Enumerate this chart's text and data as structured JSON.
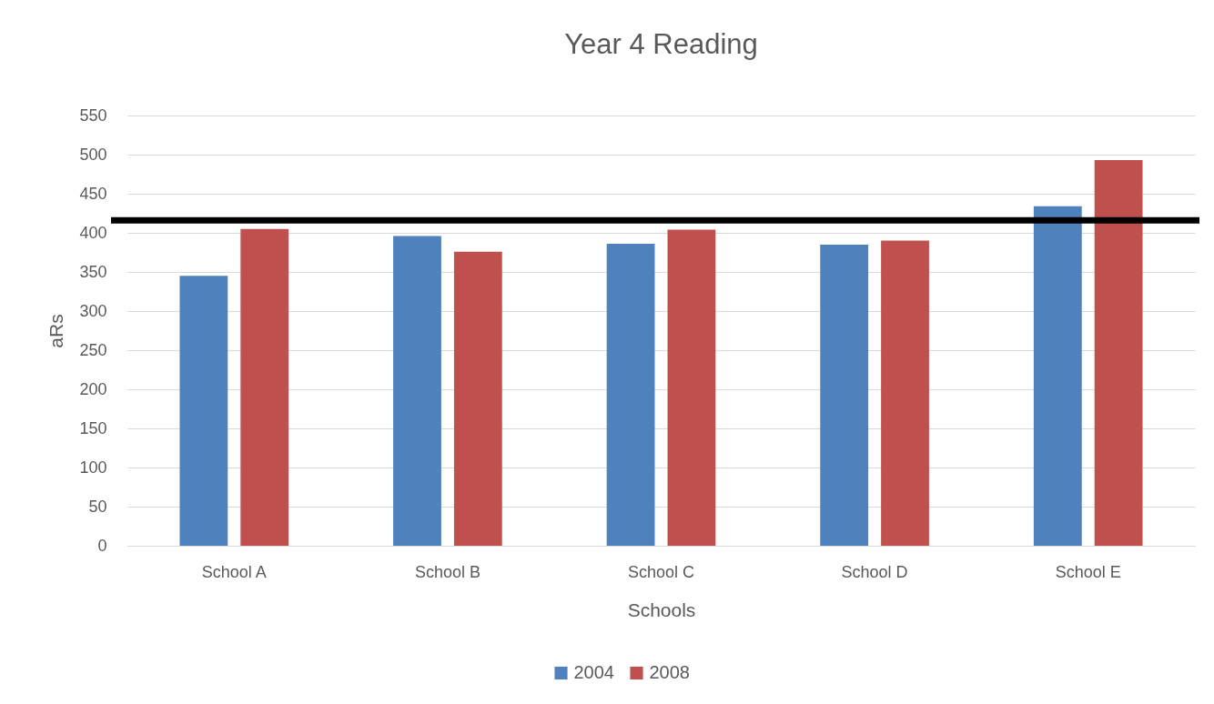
{
  "chart_data": {
    "type": "bar",
    "title": "Year 4 Reading",
    "xlabel": "Schools",
    "ylabel": "aRs",
    "categories": [
      "School A",
      "School B",
      "School C",
      "School D",
      "School E"
    ],
    "series": [
      {
        "name": "2004",
        "color": "#4f81bd",
        "values": [
          345,
          396,
          386,
          385,
          434
        ]
      },
      {
        "name": "2008",
        "color": "#c0504d",
        "values": [
          405,
          376,
          404,
          390,
          493
        ]
      }
    ],
    "ylim": [
      0,
      550
    ],
    "yticks": [
      0,
      50,
      100,
      150,
      200,
      250,
      300,
      350,
      400,
      450,
      500,
      550
    ],
    "grid": "y",
    "legend": "bottom",
    "ref_lines": [
      {
        "axis": "y",
        "value": 416,
        "color": "#000000"
      }
    ]
  }
}
